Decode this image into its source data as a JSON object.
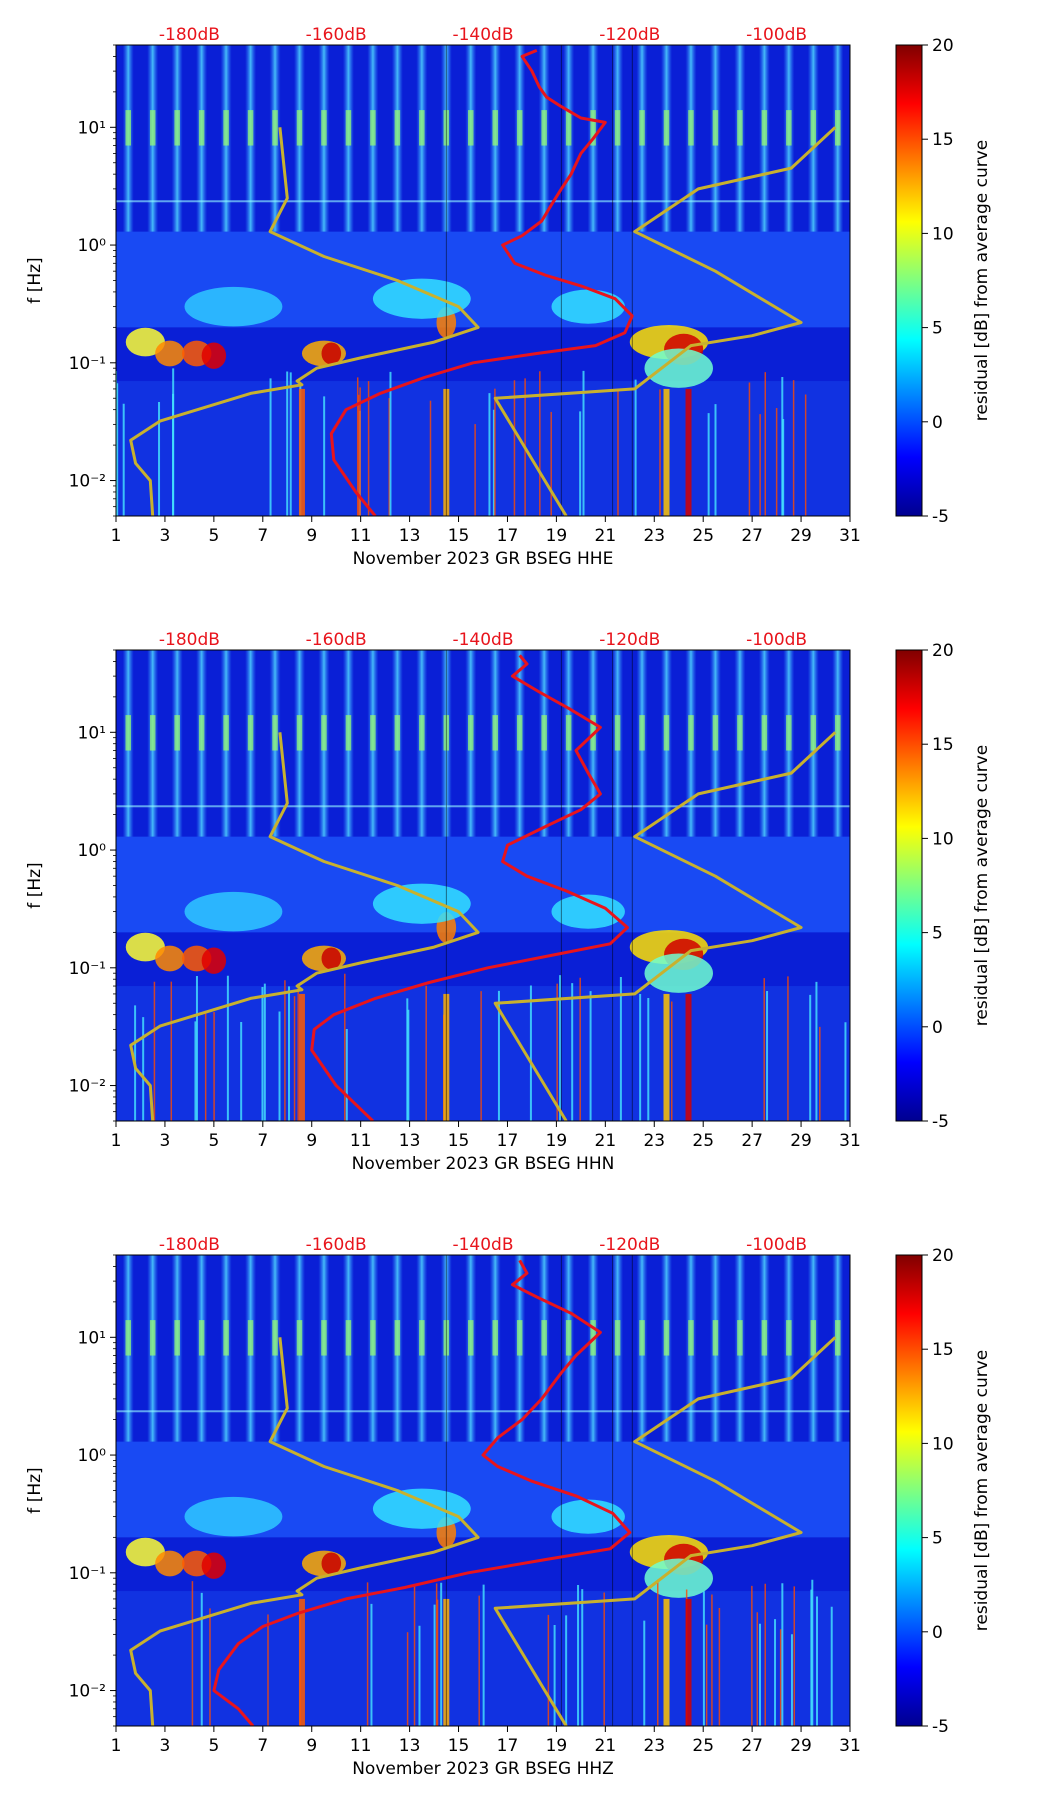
{
  "colors": {
    "psd_curve": "#e8141c",
    "model_curve": "#c8b12e",
    "top_label": "#e8141c"
  },
  "chart_data": [
    {
      "type": "heatmap",
      "channel": "HHE",
      "xlabel": "November 2023 GR BSEG  HHE",
      "ylabel": "f [Hz]",
      "x_range": [
        1,
        31
      ],
      "x_ticks": [
        1,
        3,
        5,
        7,
        9,
        11,
        13,
        15,
        17,
        19,
        21,
        23,
        25,
        27,
        29,
        31
      ],
      "y_range_hz": [
        0.005,
        50
      ],
      "y_scale": "log",
      "y_ticks": [
        "10⁻²",
        "10⁻¹",
        "10⁰",
        "10¹"
      ],
      "top_axis_labels": [
        "-180dB",
        "-160dB",
        "-140dB",
        "-120dB",
        "-100dB"
      ],
      "top_axis_days": [
        4,
        10,
        16,
        22,
        28
      ],
      "colorbar": {
        "label": "residual [dB] from average curve",
        "range": [
          -5,
          20
        ],
        "ticks": [
          -5,
          0,
          5,
          10,
          15,
          20
        ]
      },
      "series": [
        {
          "name": "PSD median (red)",
          "points": [
            [
              18.2,
              45
            ],
            [
              17.6,
              40
            ],
            [
              18.0,
              30
            ],
            [
              18.3,
              22
            ],
            [
              18.6,
              18
            ],
            [
              19.2,
              15
            ],
            [
              20.0,
              12
            ],
            [
              21.0,
              11
            ],
            [
              20.5,
              8
            ],
            [
              20.0,
              6
            ],
            [
              19.6,
              4
            ],
            [
              19.2,
              3
            ],
            [
              18.8,
              2.2
            ],
            [
              18.4,
              1.6
            ],
            [
              17.6,
              1.2
            ],
            [
              16.8,
              1.0
            ],
            [
              17.3,
              0.7
            ],
            [
              18.6,
              0.55
            ],
            [
              20.0,
              0.45
            ],
            [
              21.4,
              0.35
            ],
            [
              22.1,
              0.25
            ],
            [
              21.8,
              0.18
            ],
            [
              20.6,
              0.14
            ],
            [
              18.2,
              0.12
            ],
            [
              15.6,
              0.1
            ],
            [
              13.6,
              0.075
            ],
            [
              11.8,
              0.055
            ],
            [
              10.4,
              0.04
            ],
            [
              9.8,
              0.025
            ],
            [
              9.9,
              0.015
            ],
            [
              10.8,
              0.008
            ],
            [
              11.6,
              0.005
            ]
          ]
        },
        {
          "name": "Noise model (yellow)",
          "points": [
            [
              7.7,
              10
            ],
            [
              8.0,
              2.5
            ],
            [
              7.3,
              1.3
            ],
            [
              9.5,
              0.8
            ],
            [
              12.5,
              0.5
            ],
            [
              15.0,
              0.3
            ],
            [
              15.8,
              0.2
            ],
            [
              14.0,
              0.15
            ],
            [
              11.0,
              0.11
            ],
            [
              9.2,
              0.09
            ],
            [
              8.4,
              0.07
            ],
            [
              8.6,
              0.065
            ],
            [
              6.5,
              0.055
            ],
            [
              2.8,
              0.032
            ],
            [
              1.6,
              0.022
            ],
            [
              1.8,
              0.014
            ],
            [
              2.4,
              0.01
            ],
            [
              2.5,
              0.005
            ]
          ]
        },
        {
          "name": "Noise model (yellow)",
          "points": [
            [
              30.4,
              10
            ],
            [
              28.6,
              4.5
            ],
            [
              24.8,
              3.0
            ],
            [
              22.2,
              1.3
            ],
            [
              25.5,
              0.6
            ],
            [
              29.0,
              0.22
            ],
            [
              27.0,
              0.17
            ],
            [
              24.5,
              0.14
            ],
            [
              22.2,
              0.06
            ],
            [
              16.5,
              0.05
            ],
            [
              19.4,
              0.005
            ]
          ]
        }
      ]
    },
    {
      "type": "heatmap",
      "channel": "HHN",
      "xlabel": "November 2023 GR BSEG  HHN",
      "ylabel": "f [Hz]",
      "x_range": [
        1,
        31
      ],
      "x_ticks": [
        1,
        3,
        5,
        7,
        9,
        11,
        13,
        15,
        17,
        19,
        21,
        23,
        25,
        27,
        29,
        31
      ],
      "y_range_hz": [
        0.005,
        50
      ],
      "y_scale": "log",
      "y_ticks": [
        "10⁻²",
        "10⁻¹",
        "10⁰",
        "10¹"
      ],
      "top_axis_labels": [
        "-180dB",
        "-160dB",
        "-140dB",
        "-120dB",
        "-100dB"
      ],
      "top_axis_days": [
        4,
        10,
        16,
        22,
        28
      ],
      "colorbar": {
        "label": "residual [dB] from average curve",
        "range": [
          -5,
          20
        ],
        "ticks": [
          -5,
          0,
          5,
          10,
          15,
          20
        ]
      },
      "series": [
        {
          "name": "PSD median (red)",
          "points": [
            [
              17.5,
              45
            ],
            [
              17.8,
              38
            ],
            [
              17.2,
              30
            ],
            [
              18.3,
              22
            ],
            [
              19.5,
              16
            ],
            [
              20.8,
              11
            ],
            [
              19.8,
              7
            ],
            [
              20.3,
              4.5
            ],
            [
              20.8,
              3
            ],
            [
              20.0,
              2.2
            ],
            [
              18.6,
              1.6
            ],
            [
              17.0,
              1.1
            ],
            [
              16.8,
              0.8
            ],
            [
              17.8,
              0.6
            ],
            [
              19.4,
              0.45
            ],
            [
              21.0,
              0.32
            ],
            [
              21.9,
              0.22
            ],
            [
              21.2,
              0.16
            ],
            [
              19.0,
              0.13
            ],
            [
              16.2,
              0.1
            ],
            [
              13.8,
              0.075
            ],
            [
              11.6,
              0.055
            ],
            [
              9.9,
              0.04
            ],
            [
              9.1,
              0.03
            ],
            [
              9.0,
              0.02
            ],
            [
              10.0,
              0.01
            ],
            [
              11.5,
              0.005
            ]
          ]
        },
        {
          "name": "Noise model (yellow)",
          "points": [
            [
              7.7,
              10
            ],
            [
              8.0,
              2.5
            ],
            [
              7.3,
              1.3
            ],
            [
              9.5,
              0.8
            ],
            [
              12.5,
              0.5
            ],
            [
              15.0,
              0.3
            ],
            [
              15.8,
              0.2
            ],
            [
              14.0,
              0.15
            ],
            [
              11.0,
              0.11
            ],
            [
              9.2,
              0.09
            ],
            [
              8.4,
              0.07
            ],
            [
              8.6,
              0.065
            ],
            [
              6.5,
              0.055
            ],
            [
              2.8,
              0.032
            ],
            [
              1.6,
              0.022
            ],
            [
              1.8,
              0.014
            ],
            [
              2.4,
              0.01
            ],
            [
              2.5,
              0.005
            ]
          ]
        },
        {
          "name": "Noise model (yellow)",
          "points": [
            [
              30.4,
              10
            ],
            [
              28.6,
              4.5
            ],
            [
              24.8,
              3.0
            ],
            [
              22.2,
              1.3
            ],
            [
              25.5,
              0.6
            ],
            [
              29.0,
              0.22
            ],
            [
              27.0,
              0.17
            ],
            [
              24.5,
              0.14
            ],
            [
              22.2,
              0.06
            ],
            [
              16.5,
              0.05
            ],
            [
              19.4,
              0.005
            ]
          ]
        }
      ]
    },
    {
      "type": "heatmap",
      "channel": "HHZ",
      "xlabel": "November 2023 GR BSEG  HHZ",
      "ylabel": "f [Hz]",
      "x_range": [
        1,
        31
      ],
      "x_ticks": [
        1,
        3,
        5,
        7,
        9,
        11,
        13,
        15,
        17,
        19,
        21,
        23,
        25,
        27,
        29,
        31
      ],
      "y_range_hz": [
        0.005,
        50
      ],
      "y_scale": "log",
      "y_ticks": [
        "10⁻²",
        "10⁻¹",
        "10⁰",
        "10¹"
      ],
      "top_axis_labels": [
        "-180dB",
        "-160dB",
        "-140dB",
        "-120dB",
        "-100dB"
      ],
      "top_axis_days": [
        4,
        10,
        16,
        22,
        28
      ],
      "colorbar": {
        "label": "residual [dB] from average curve",
        "range": [
          -5,
          20
        ],
        "ticks": [
          -5,
          0,
          5,
          10,
          15,
          20
        ]
      },
      "series": [
        {
          "name": "PSD median (red)",
          "points": [
            [
              17.5,
              45
            ],
            [
              17.8,
              35
            ],
            [
              17.2,
              28
            ],
            [
              18.2,
              22
            ],
            [
              19.6,
              16
            ],
            [
              20.8,
              11
            ],
            [
              19.8,
              7
            ],
            [
              19.2,
              5
            ],
            [
              18.4,
              3
            ],
            [
              17.6,
              2
            ],
            [
              16.6,
              1.4
            ],
            [
              16.0,
              1.0
            ],
            [
              16.6,
              0.8
            ],
            [
              18.0,
              0.6
            ],
            [
              19.8,
              0.45
            ],
            [
              21.3,
              0.32
            ],
            [
              22.0,
              0.22
            ],
            [
              21.2,
              0.16
            ],
            [
              18.6,
              0.13
            ],
            [
              15.4,
              0.1
            ],
            [
              12.8,
              0.075
            ],
            [
              10.4,
              0.06
            ],
            [
              8.4,
              0.045
            ],
            [
              7.0,
              0.035
            ],
            [
              6.0,
              0.025
            ],
            [
              5.2,
              0.015
            ],
            [
              5.0,
              0.01
            ],
            [
              6.0,
              0.007
            ],
            [
              6.6,
              0.005
            ]
          ]
        },
        {
          "name": "Noise model (yellow)",
          "points": [
            [
              7.7,
              10
            ],
            [
              8.0,
              2.5
            ],
            [
              7.3,
              1.3
            ],
            [
              9.5,
              0.8
            ],
            [
              12.5,
              0.5
            ],
            [
              15.0,
              0.3
            ],
            [
              15.8,
              0.2
            ],
            [
              14.0,
              0.15
            ],
            [
              11.0,
              0.11
            ],
            [
              9.2,
              0.09
            ],
            [
              8.4,
              0.07
            ],
            [
              8.6,
              0.065
            ],
            [
              6.5,
              0.055
            ],
            [
              2.8,
              0.032
            ],
            [
              1.6,
              0.022
            ],
            [
              1.8,
              0.014
            ],
            [
              2.4,
              0.01
            ],
            [
              2.5,
              0.005
            ]
          ]
        },
        {
          "name": "Noise model (yellow)",
          "points": [
            [
              30.4,
              10
            ],
            [
              28.6,
              4.5
            ],
            [
              24.8,
              3.0
            ],
            [
              22.2,
              1.3
            ],
            [
              25.5,
              0.6
            ],
            [
              29.0,
              0.22
            ],
            [
              27.0,
              0.17
            ],
            [
              24.5,
              0.14
            ],
            [
              22.2,
              0.06
            ],
            [
              16.5,
              0.05
            ],
            [
              19.4,
              0.005
            ]
          ]
        }
      ]
    }
  ]
}
